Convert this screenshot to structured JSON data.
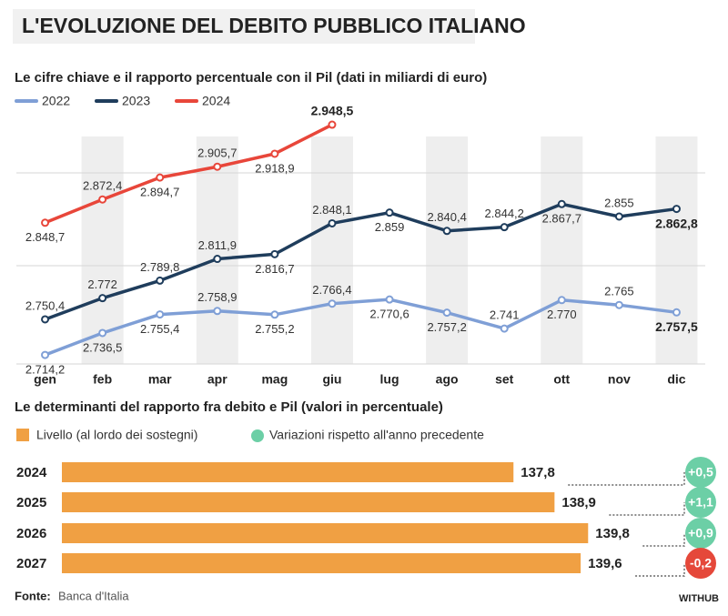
{
  "header": {
    "title": "L'EVOLUZIONE DEL DEBITO PUBBLICO ITALIANO"
  },
  "source": {
    "label": "Fonte:",
    "text": "Banca d'Italia"
  },
  "logo": "WITHUB",
  "chart_data": [
    {
      "type": "line",
      "title": "Le cifre chiave e il rapporto percentuale con il Pil (dati in miliardi di euro)",
      "categories": [
        "gen",
        "feb",
        "mar",
        "apr",
        "mag",
        "giu",
        "lug",
        "ago",
        "set",
        "ott",
        "nov",
        "dic"
      ],
      "ylim": [
        2705,
        2955
      ],
      "series": [
        {
          "name": "2022",
          "color": "#7f9fd6",
          "values": [
            2714.2,
            2736.5,
            2755.4,
            2758.9,
            2755.2,
            2766.4,
            2770.6,
            2757.2,
            2741,
            2770,
            2765,
            2757.5
          ],
          "value_labels": [
            "2.714,2",
            "2.736,5",
            "2.755,4",
            "2.758,9",
            "2.755,2",
            "2.766,4",
            "2.770,6",
            "2.757,2",
            "2.741",
            "2.770",
            "2.765",
            "2.757,5"
          ]
        },
        {
          "name": "2023",
          "color": "#1f3d5c",
          "values": [
            2750.4,
            2772,
            2789.8,
            2811.9,
            2816.7,
            2848.1,
            2859,
            2840.4,
            2844.2,
            2867.7,
            2855,
            2862.8
          ],
          "value_labels": [
            "2.750,4",
            "2.772",
            "2.789,8",
            "2.811,9",
            "2.816,7",
            "2.848,1",
            "2.859",
            "2.840,4",
            "2.844,2",
            "2.867,7",
            "2.855",
            "2.862,8"
          ]
        },
        {
          "name": "2024",
          "color": "#e8463a",
          "values": [
            2848.7,
            2872.4,
            2894.7,
            2905.7,
            2918.9,
            2948.5,
            null,
            null,
            null,
            null,
            null,
            null
          ],
          "value_labels": [
            "2.848,7",
            "2.872,4",
            "2.894,7",
            "2.905,7",
            "2.918,9",
            "2.948,5",
            null,
            null,
            null,
            null,
            null,
            null
          ]
        }
      ]
    },
    {
      "type": "bar",
      "title": "Le determinanti del rapporto fra debito e Pil (valori in percentuale)",
      "categories": [
        "2024",
        "2025",
        "2026",
        "2027"
      ],
      "xlim": [
        125.7,
        141.5
      ],
      "series": [
        {
          "name": "Livello (al lordo dei sostegni)",
          "color": "#f0a043",
          "values": [
            137.8,
            138.9,
            139.8,
            139.6
          ],
          "value_labels": [
            "137,8",
            "138,9",
            "139,8",
            "139,6"
          ]
        },
        {
          "name": "Variazioni rispetto all'anno precedente",
          "color": "#6ccfa6",
          "negative_color": "#e5483a",
          "values": [
            0.5,
            1.1,
            0.9,
            -0.2
          ],
          "value_labels": [
            "+0,5",
            "+1,1",
            "+0,9",
            "-0,2"
          ]
        }
      ]
    }
  ]
}
